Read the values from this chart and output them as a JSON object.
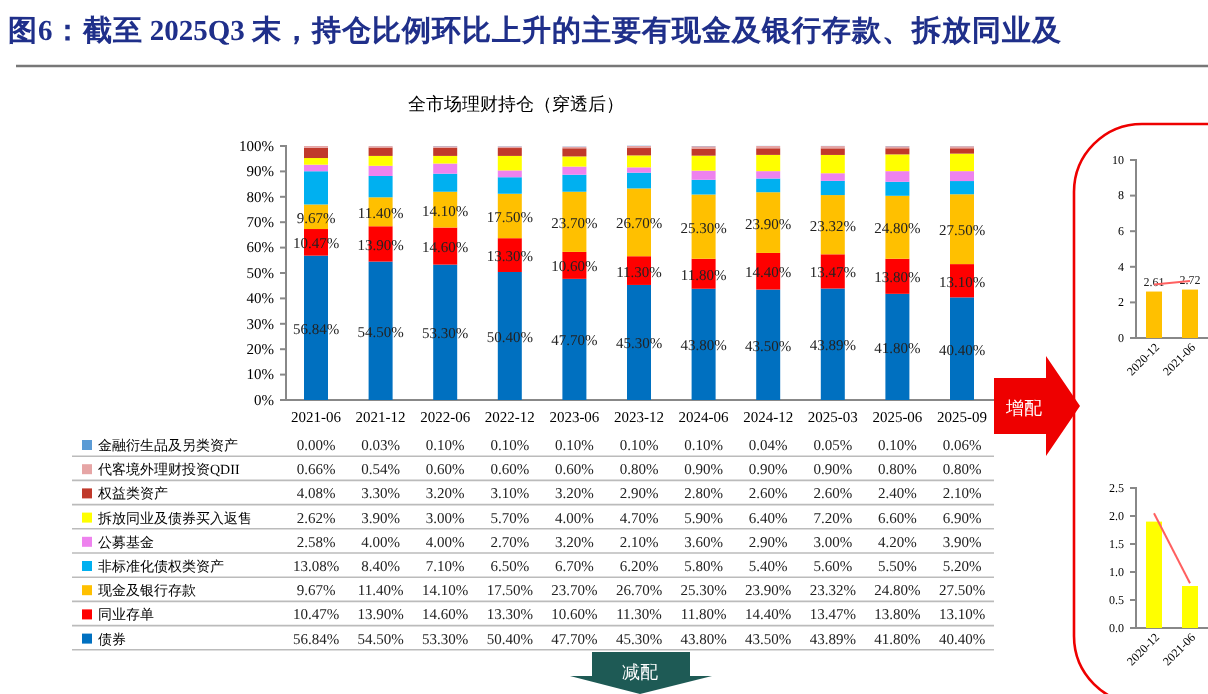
{
  "chart_data": [
    {
      "type": "bar",
      "title": "图6：截至 2025Q3 末，持仓比例环比上升的主要有现金及银行存款、拆放同业及",
      "subtitle": "全市场理财持仓（穿透后）",
      "stacked": true,
      "legend": "bottom",
      "categories": [
        "2021-06",
        "2021-12",
        "2022-06",
        "2022-12",
        "2023-06",
        "2023-12",
        "2024-06",
        "2024-12",
        "2025-03",
        "2025-06",
        "2025-09"
      ],
      "ylim": [
        0,
        100
      ],
      "yticks": [
        {
          "value": 0,
          "label": "0%"
        },
        {
          "value": 10,
          "label": "10%"
        },
        {
          "value": 20,
          "label": "20%"
        },
        {
          "value": 30,
          "label": "30%"
        },
        {
          "value": 40,
          "label": "40%"
        },
        {
          "value": 50,
          "label": "50%"
        },
        {
          "value": 60,
          "label": "60%"
        },
        {
          "value": 70,
          "label": "70%"
        },
        {
          "value": 80,
          "label": "80%"
        },
        {
          "value": 90,
          "label": "90%"
        },
        {
          "value": 100,
          "label": "100%"
        }
      ],
      "series": [
        {
          "name": "债券",
          "color": "#0070c0",
          "values": [
            56.84,
            54.5,
            53.3,
            50.4,
            47.7,
            45.3,
            43.8,
            43.5,
            43.89,
            41.8,
            40.4
          ],
          "value_labels": [
            "56.84%",
            "54.50%",
            "53.30%",
            "50.40%",
            "47.70%",
            "45.30%",
            "43.80%",
            "43.50%",
            "43.89%",
            "41.80%",
            "40.40%"
          ]
        },
        {
          "name": "同业存单",
          "color": "#ff0000",
          "values": [
            10.47,
            13.9,
            14.6,
            13.3,
            10.6,
            11.3,
            11.8,
            14.4,
            13.47,
            13.8,
            13.1
          ],
          "value_labels": [
            "10.47%",
            "13.90%",
            "14.60%",
            "13.30%",
            "10.60%",
            "11.30%",
            "11.80%",
            "14.40%",
            "13.47%",
            "13.80%",
            "13.10%"
          ]
        },
        {
          "name": "现金及银行存款",
          "color": "#ffc000",
          "values": [
            9.67,
            11.4,
            14.1,
            17.5,
            23.7,
            26.7,
            25.3,
            23.9,
            23.32,
            24.8,
            27.5
          ],
          "value_labels": [
            "9.67%",
            "11.40%",
            "14.10%",
            "17.50%",
            "23.70%",
            "26.70%",
            "25.30%",
            "23.90%",
            "23.32%",
            "24.80%",
            "27.50%"
          ]
        },
        {
          "name": "非标准化债权类资产",
          "color": "#00b0f0",
          "values": [
            13.08,
            8.4,
            7.1,
            6.5,
            6.7,
            6.2,
            5.8,
            5.4,
            5.6,
            5.5,
            5.2
          ],
          "value_labels": [
            "13.08%",
            "8.40%",
            "7.10%",
            "6.50%",
            "6.70%",
            "6.20%",
            "5.80%",
            "5.40%",
            "5.60%",
            "5.50%",
            "5.20%"
          ]
        },
        {
          "name": "公募基金",
          "color": "#ee82ee",
          "values": [
            2.58,
            4.0,
            4.0,
            2.7,
            3.2,
            2.1,
            3.6,
            2.9,
            3.0,
            4.2,
            3.9
          ],
          "value_labels": [
            "2.58%",
            "4.00%",
            "4.00%",
            "2.70%",
            "3.20%",
            "2.10%",
            "3.60%",
            "2.90%",
            "3.00%",
            "4.20%",
            "3.90%"
          ]
        },
        {
          "name": "拆放同业及债券买入返售",
          "color": "#ffff00",
          "values": [
            2.62,
            3.9,
            3.0,
            5.7,
            4.0,
            4.7,
            5.9,
            6.4,
            7.2,
            6.6,
            6.9
          ],
          "value_labels": [
            "2.62%",
            "3.90%",
            "3.00%",
            "5.70%",
            "4.00%",
            "4.70%",
            "5.90%",
            "6.40%",
            "7.20%",
            "6.60%",
            "6.90%"
          ]
        },
        {
          "name": "权益类资产",
          "color": "#c0392b",
          "values": [
            4.08,
            3.3,
            3.2,
            3.1,
            3.2,
            2.9,
            2.8,
            2.6,
            2.6,
            2.4,
            2.1
          ],
          "value_labels": [
            "4.08%",
            "3.30%",
            "3.20%",
            "3.10%",
            "3.20%",
            "2.90%",
            "2.80%",
            "2.60%",
            "2.60%",
            "2.40%",
            "2.10%"
          ]
        },
        {
          "name": "代客境外理财投资QDII",
          "color": "#e6a5a5",
          "values": [
            0.66,
            0.54,
            0.6,
            0.6,
            0.6,
            0.8,
            0.9,
            0.9,
            0.9,
            0.8,
            0.8
          ],
          "value_labels": [
            "0.66%",
            "0.54%",
            "0.60%",
            "0.60%",
            "0.60%",
            "0.80%",
            "0.90%",
            "0.90%",
            "0.90%",
            "0.80%",
            "0.80%"
          ]
        },
        {
          "name": "金融衍生品及另类资产",
          "color": "#5b9bd5",
          "values": [
            0.0,
            0.03,
            0.1,
            0.1,
            0.1,
            0.1,
            0.1,
            0.04,
            0.05,
            0.1,
            0.06
          ],
          "value_labels": [
            "0.00%",
            "0.03%",
            "0.10%",
            "0.10%",
            "0.10%",
            "0.10%",
            "0.10%",
            "0.04%",
            "0.05%",
            "0.10%",
            "0.06%"
          ]
        }
      ],
      "annotations": [
        "增配",
        "减配"
      ]
    },
    {
      "type": "bar",
      "categories": [
        "2020-12",
        "2021-06"
      ],
      "ylim": [
        0,
        10
      ],
      "yticks": [
        0,
        2,
        4,
        6,
        8,
        10
      ],
      "series": [
        {
          "type": "bar",
          "color": "#ffc000",
          "values": [
            2.61,
            2.72
          ],
          "value_labels": [
            "2.61",
            "2.72"
          ]
        },
        {
          "type": "line",
          "color": "#ff6060",
          "values": [
            3.0,
            3.2
          ]
        }
      ]
    },
    {
      "type": "bar",
      "categories": [
        "2020-12",
        "2021-06"
      ],
      "ylim": [
        0,
        2.5
      ],
      "yticks": [
        {
          "value": 0,
          "label": "0.0"
        },
        {
          "value": 0.5,
          "label": "0.5"
        },
        {
          "value": 1,
          "label": "1.0"
        },
        {
          "value": 1.5,
          "label": "1.5"
        },
        {
          "value": 2,
          "label": "2.0"
        },
        {
          "value": 2.5,
          "label": "2.5"
        }
      ],
      "series": [
        {
          "type": "bar",
          "color": "#ffff00",
          "values": [
            1.9,
            0.75
          ]
        },
        {
          "type": "line",
          "color": "#ff6060",
          "values": [
            2.05,
            0.8
          ]
        }
      ]
    }
  ]
}
